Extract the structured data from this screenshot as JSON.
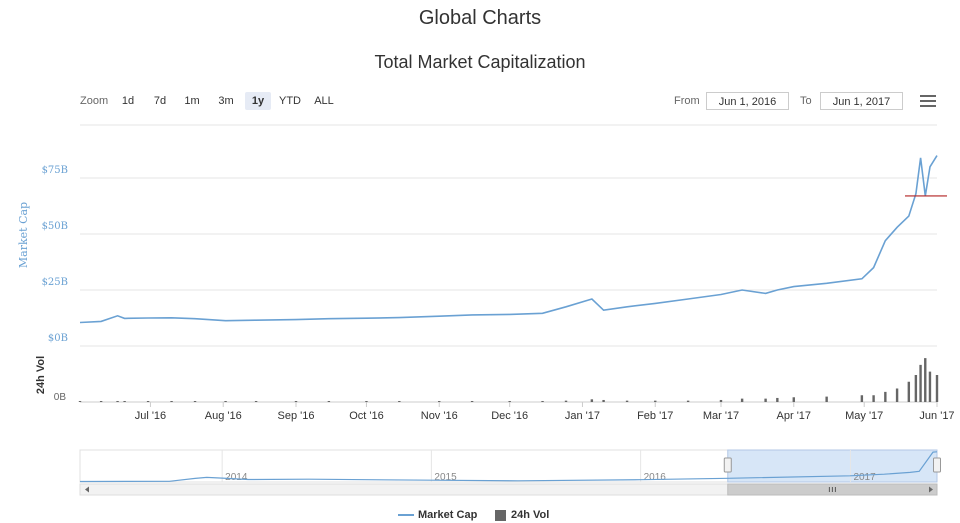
{
  "page": {
    "title": "Global Charts"
  },
  "toolbar": {
    "zoom_label": "Zoom",
    "zoom_buttons": [
      "1d",
      "7d",
      "1m",
      "3m",
      "1y",
      "YTD",
      "ALL"
    ],
    "active_zoom": "1y",
    "from_label": "From",
    "from_value": "Jun 1, 2016",
    "to_label": "To",
    "to_value": "Jun 1, 2017",
    "menu_icon": "hamburger-menu-icon"
  },
  "colors": {
    "market_cap_line": "#6aa1d3",
    "volume_bars": "#666666",
    "axis_text": "#6aa1d3",
    "navigator_fill": "#d7e6f7",
    "crosshair": "#b22222"
  },
  "chart_data": {
    "type": "line",
    "title": "Total Market Capitalization",
    "x": [
      "2016-06-01",
      "2016-06-10",
      "2016-06-17",
      "2016-06-20",
      "2016-06-30",
      "2016-07-10",
      "2016-07-20",
      "2016-08-02",
      "2016-08-15",
      "2016-09-01",
      "2016-09-15",
      "2016-10-01",
      "2016-10-15",
      "2016-11-01",
      "2016-11-15",
      "2016-12-01",
      "2016-12-15",
      "2016-12-25",
      "2017-01-05",
      "2017-01-10",
      "2017-01-20",
      "2017-02-01",
      "2017-02-15",
      "2017-03-01",
      "2017-03-10",
      "2017-03-20",
      "2017-03-25",
      "2017-04-01",
      "2017-04-15",
      "2017-04-30",
      "2017-05-05",
      "2017-05-10",
      "2017-05-15",
      "2017-05-20",
      "2017-05-23",
      "2017-05-25",
      "2017-05-27",
      "2017-05-29",
      "2017-06-01"
    ],
    "series": [
      {
        "name": "Market Cap",
        "unit": "B",
        "values": [
          10.5,
          11,
          13.5,
          12.3,
          12.5,
          12.6,
          12.2,
          11.3,
          11.5,
          11.8,
          12.2,
          12.4,
          12.7,
          13.3,
          13.9,
          14.1,
          14.6,
          17.5,
          21,
          16,
          17.5,
          19,
          21,
          23,
          25,
          23.5,
          25,
          26.5,
          28,
          30,
          35,
          47,
          53,
          58,
          68,
          84,
          67,
          80,
          85
        ]
      },
      {
        "name": "24h Vol",
        "unit": "B",
        "values": [
          0.1,
          0.1,
          0.15,
          0.1,
          0.1,
          0.1,
          0.1,
          0.1,
          0.1,
          0.1,
          0.1,
          0.1,
          0.1,
          0.1,
          0.1,
          0.1,
          0.15,
          0.2,
          0.4,
          0.3,
          0.2,
          0.2,
          0.2,
          0.3,
          0.5,
          0.5,
          0.6,
          0.7,
          0.8,
          1.0,
          1.0,
          1.5,
          2.0,
          3.0,
          4.0,
          5.5,
          6.5,
          4.5,
          4.0
        ]
      }
    ],
    "xlabel": "",
    "ylabel": "Market Cap",
    "ylabel_volume": "24h Vol",
    "ylim": [
      0,
      100
    ],
    "y_ticks": [
      "$0B",
      "$25B",
      "$50B",
      "$75B"
    ],
    "y_tick_values": [
      0,
      25,
      50,
      75
    ],
    "volume_ticks": [
      "0B"
    ],
    "x_ticks": [
      "Jul '16",
      "Aug '16",
      "Sep '16",
      "Oct '16",
      "Nov '16",
      "Dec '16",
      "Jan '17",
      "Feb '17",
      "Mar '17",
      "Apr '17",
      "May '17",
      "Jun '17"
    ],
    "x_tick_dates": [
      "2016-07-01",
      "2016-08-01",
      "2016-09-01",
      "2016-10-01",
      "2016-11-01",
      "2016-12-01",
      "2017-01-01",
      "2017-02-01",
      "2017-03-01",
      "2017-04-01",
      "2017-05-01",
      "2017-06-01"
    ],
    "navigator": {
      "year_labels": [
        "2014",
        "2015",
        "2016",
        "2017"
      ],
      "year_dates": [
        "2014-01-01",
        "2015-01-01",
        "2016-01-01",
        "2017-01-01"
      ],
      "x": [
        "2013-04-28",
        "2013-10-01",
        "2013-11-15",
        "2013-12-05",
        "2014-01-01",
        "2014-02-15",
        "2014-06-01",
        "2015-01-01",
        "2015-06-01",
        "2016-01-01",
        "2016-06-01",
        "2016-12-31",
        "2017-03-01",
        "2017-04-15",
        "2017-05-01",
        "2017-05-25",
        "2017-06-01"
      ],
      "values": [
        1.5,
        2,
        10,
        13,
        11,
        7,
        8,
        5,
        3.5,
        6.5,
        10.5,
        17.5,
        22,
        27,
        30,
        84,
        85
      ],
      "selected_range": [
        "2016-06-01",
        "2017-06-01"
      ]
    },
    "grid": true,
    "legend": "bottom-center"
  }
}
